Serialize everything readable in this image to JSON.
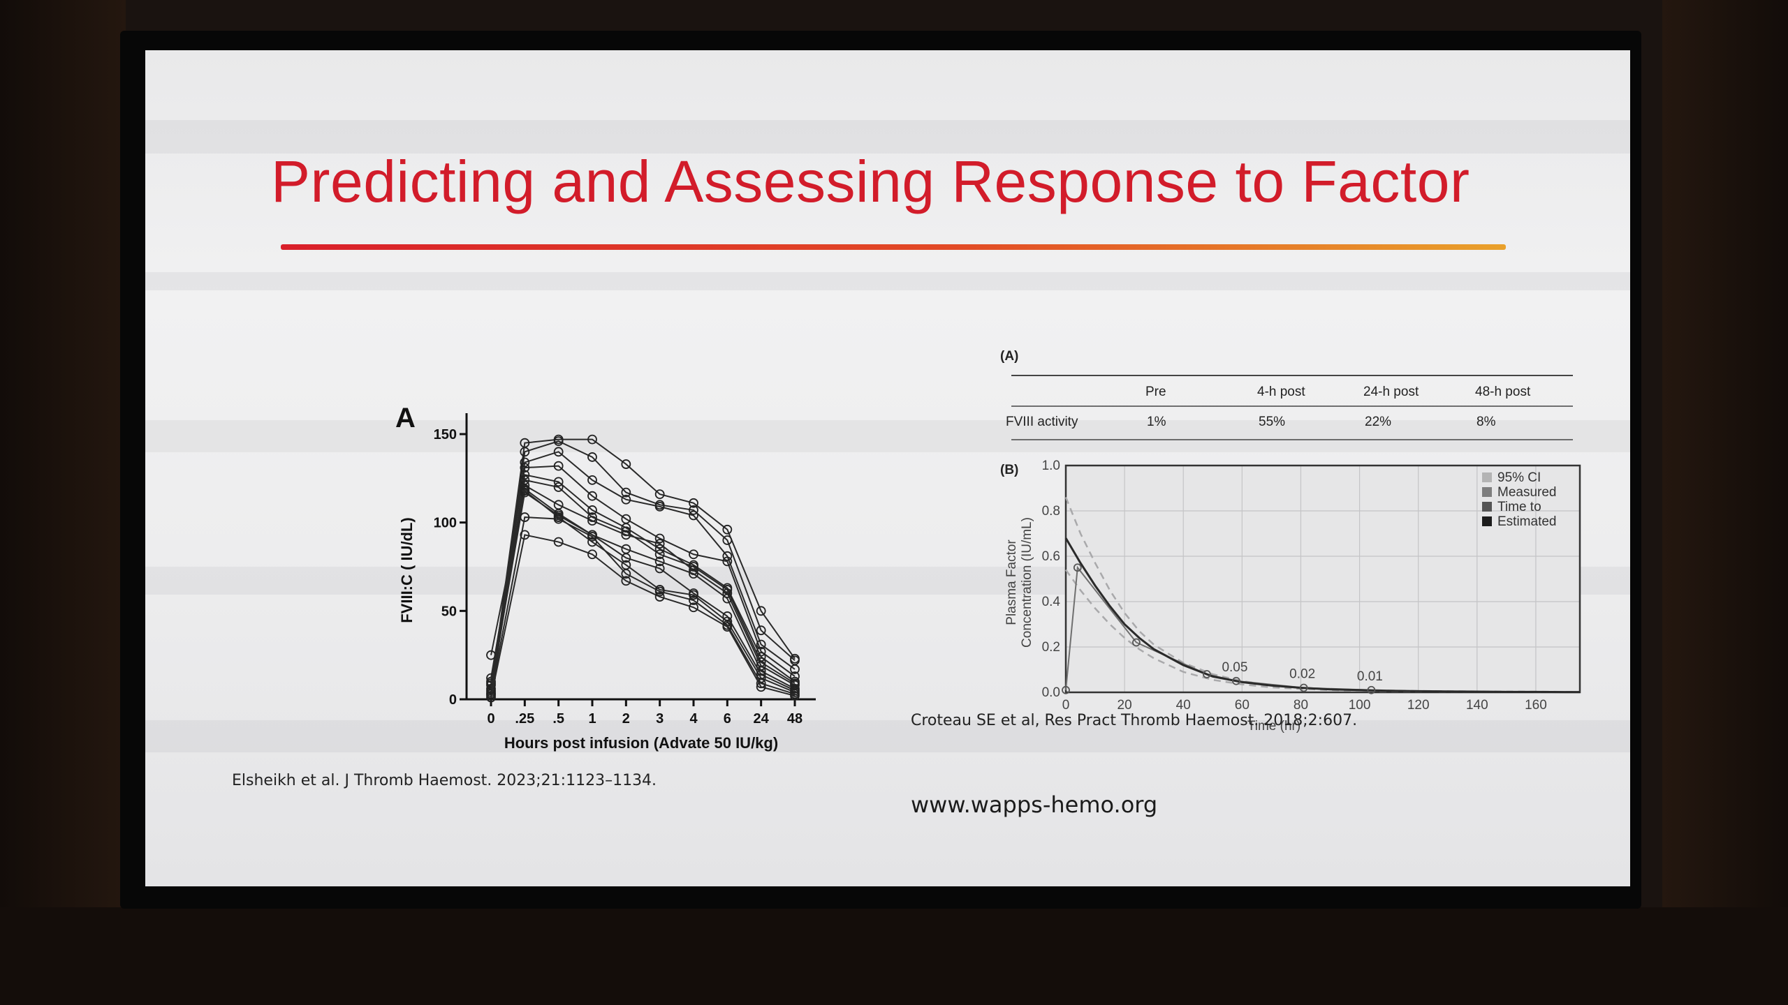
{
  "slide": {
    "title": "Predicting and Assessing Response to Factor",
    "citation_left": "Elsheikh et al. J Thromb Haemost. 2023;21:1123–1134.",
    "citation_right": "Croteau SE et al, Res Pract Thromb Haemost. 2018;2:607.",
    "url": "www.wapps-hemo.org",
    "title_color": "#d21c2a"
  },
  "chart_data": [
    {
      "type": "line",
      "panel_label": "A",
      "xlabel": "Hours post infusion (Advate 50 IU/kg)",
      "ylabel": "FVIII:C ( IU/dL)",
      "categories": [
        "0",
        ".25",
        ".5",
        "1",
        "2",
        "3",
        "4",
        "6",
        "24",
        "48"
      ],
      "yticks": [
        0,
        50,
        100,
        150
      ],
      "ylim": [
        0,
        150
      ],
      "grid": false,
      "marker": "open-circle",
      "series": [
        {
          "values": [
            5,
            145,
            147,
            147,
            133,
            116,
            111,
            96,
            50,
            23
          ]
        },
        {
          "values": [
            3,
            140,
            146,
            137,
            117,
            110,
            107,
            90,
            39,
            22
          ]
        },
        {
          "values": [
            8,
            134,
            140,
            124,
            113,
            109,
            104,
            81,
            31,
            17
          ]
        },
        {
          "values": [
            10,
            131,
            132,
            115,
            102,
            91,
            82,
            78,
            27,
            13
          ]
        },
        {
          "values": [
            2,
            127,
            123,
            107,
            97,
            85,
            76,
            63,
            24,
            10
          ]
        },
        {
          "values": [
            12,
            124,
            120,
            103,
            95,
            82,
            75,
            62,
            21,
            9
          ]
        },
        {
          "values": [
            4,
            121,
            110,
            101,
            93,
            88,
            73,
            60,
            19,
            8
          ]
        },
        {
          "values": [
            25,
            119,
            105,
            93,
            85,
            78,
            71,
            57,
            16,
            6
          ]
        },
        {
          "values": [
            6,
            117,
            104,
            93,
            80,
            74,
            60,
            47,
            14,
            5
          ]
        },
        {
          "values": [
            9,
            118,
            103,
            89,
            76,
            62,
            59,
            44,
            12,
            4
          ]
        },
        {
          "values": [
            3,
            103,
            102,
            92,
            71,
            61,
            56,
            42,
            9,
            3
          ]
        },
        {
          "values": [
            1,
            93,
            89,
            82,
            67,
            58,
            52,
            41,
            7,
            2
          ]
        }
      ]
    },
    {
      "type": "table",
      "panel_label": "(A)",
      "columns": [
        "",
        "Pre",
        "4-h post",
        "24-h post",
        "48-h post"
      ],
      "rows": [
        [
          "FVIII activity",
          "1%",
          "55%",
          "22%",
          "8%"
        ]
      ]
    },
    {
      "type": "line",
      "panel_label": "(B)",
      "xlabel": "Time (hr)",
      "ylabel_lines": [
        "Plasma Factor",
        "Concentration (IU/mL)"
      ],
      "xlim": [
        0,
        175
      ],
      "ylim": [
        0,
        1.0
      ],
      "xticks": [
        0,
        20,
        40,
        60,
        80,
        100,
        120,
        140,
        160
      ],
      "yticks": [
        "0.0",
        "0.2",
        "0.4",
        "0.6",
        "0.8",
        "1.0"
      ],
      "grid": true,
      "legend_position": "top-right",
      "legend": [
        {
          "label": "95% CI",
          "color": "#b4b4b4"
        },
        {
          "label": "Measured",
          "color": "#7e7e7e"
        },
        {
          "label": "Time to",
          "color": "#555555"
        },
        {
          "label": "Estimated",
          "color": "#1c1c1c"
        }
      ],
      "estimated_curve": {
        "x": [
          0,
          5,
          10,
          15,
          20,
          25,
          30,
          40,
          50,
          60,
          70,
          80,
          90,
          100,
          110,
          120,
          130,
          140,
          150,
          160,
          170,
          175
        ],
        "y": [
          0.68,
          0.57,
          0.47,
          0.38,
          0.3,
          0.24,
          0.19,
          0.12,
          0.07,
          0.045,
          0.03,
          0.02,
          0.013,
          0.01,
          0.007,
          0.005,
          0.004,
          0.003,
          0.002,
          0.002,
          0.001,
          0.001
        ]
      },
      "ci_upper": {
        "x": [
          0,
          5,
          10,
          15,
          20,
          25,
          30,
          40,
          50,
          60,
          70,
          80,
          90,
          100,
          120,
          140,
          160,
          175
        ],
        "y": [
          0.86,
          0.7,
          0.57,
          0.45,
          0.35,
          0.27,
          0.21,
          0.13,
          0.08,
          0.05,
          0.03,
          0.02,
          0.015,
          0.01,
          0.006,
          0.004,
          0.003,
          0.002
        ]
      },
      "ci_lower": {
        "x": [
          0,
          5,
          10,
          15,
          20,
          25,
          30,
          40,
          50,
          60,
          70,
          80,
          90,
          100,
          120,
          140,
          160,
          175
        ],
        "y": [
          0.54,
          0.45,
          0.37,
          0.3,
          0.24,
          0.19,
          0.15,
          0.09,
          0.055,
          0.035,
          0.022,
          0.015,
          0.01,
          0.007,
          0.004,
          0.003,
          0.002,
          0.001
        ]
      },
      "measured": {
        "x": [
          0,
          4,
          24,
          48,
          58,
          81,
          104
        ],
        "y": [
          0.01,
          0.55,
          0.22,
          0.08,
          0.05,
          0.02,
          0.01
        ]
      },
      "annotations": [
        {
          "x": 58,
          "y": 0.05,
          "text": "0.05"
        },
        {
          "x": 81,
          "y": 0.02,
          "text": "0.02"
        },
        {
          "x": 104,
          "y": 0.01,
          "text": "0.01"
        }
      ]
    }
  ]
}
